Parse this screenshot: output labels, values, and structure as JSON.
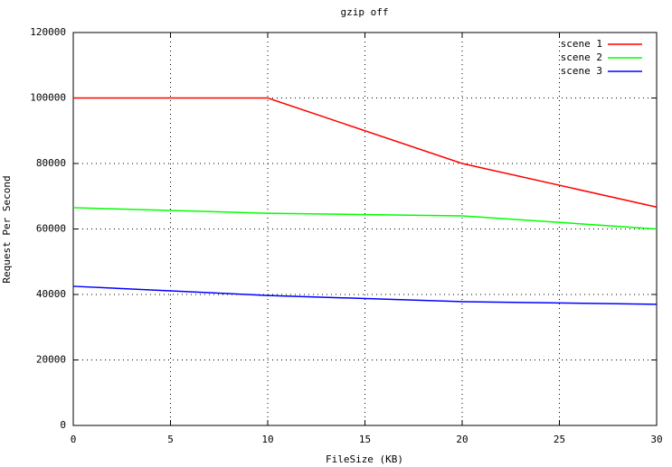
{
  "chart_data": {
    "type": "line",
    "title": "gzip off",
    "xlabel": "FileSize (KB)",
    "ylabel": "Request Per Second",
    "x": [
      0,
      10,
      20,
      30
    ],
    "series": [
      {
        "name": "scene 1",
        "color": "#ff0000",
        "values": [
          100000,
          100000,
          80000,
          66700
        ]
      },
      {
        "name": "scene 2",
        "color": "#00ff00",
        "values": [
          66500,
          64800,
          64000,
          60000
        ]
      },
      {
        "name": "scene 3",
        "color": "#0000ff",
        "values": [
          42500,
          39700,
          37800,
          37000
        ]
      }
    ],
    "xlim": [
      0,
      30
    ],
    "xticks": [
      0,
      5,
      10,
      15,
      20,
      25,
      30
    ],
    "ylim": [
      0,
      120000
    ],
    "yticks": [
      0,
      20000,
      40000,
      60000,
      80000,
      100000,
      120000
    ],
    "grid": true,
    "legend": "top-right"
  }
}
